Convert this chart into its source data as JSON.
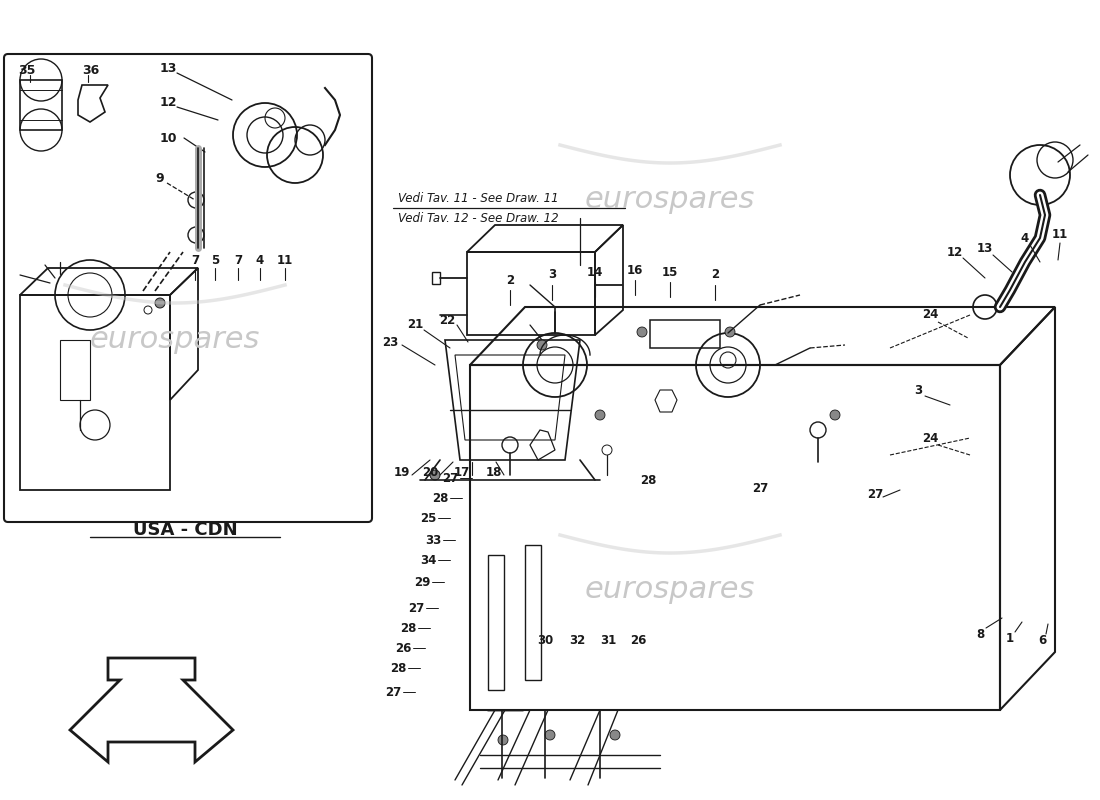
{
  "bg": "#ffffff",
  "lc": "#1a1a1a",
  "wm_color": "#d0d0d0",
  "wm_text": "eurospares",
  "wm_alpha": 0.35,
  "note1": "Vedi Tav. 11 - See Draw. 11",
  "note2": "Vedi Tav. 12 - See Draw. 12",
  "usa_cdn": "USA - CDN"
}
